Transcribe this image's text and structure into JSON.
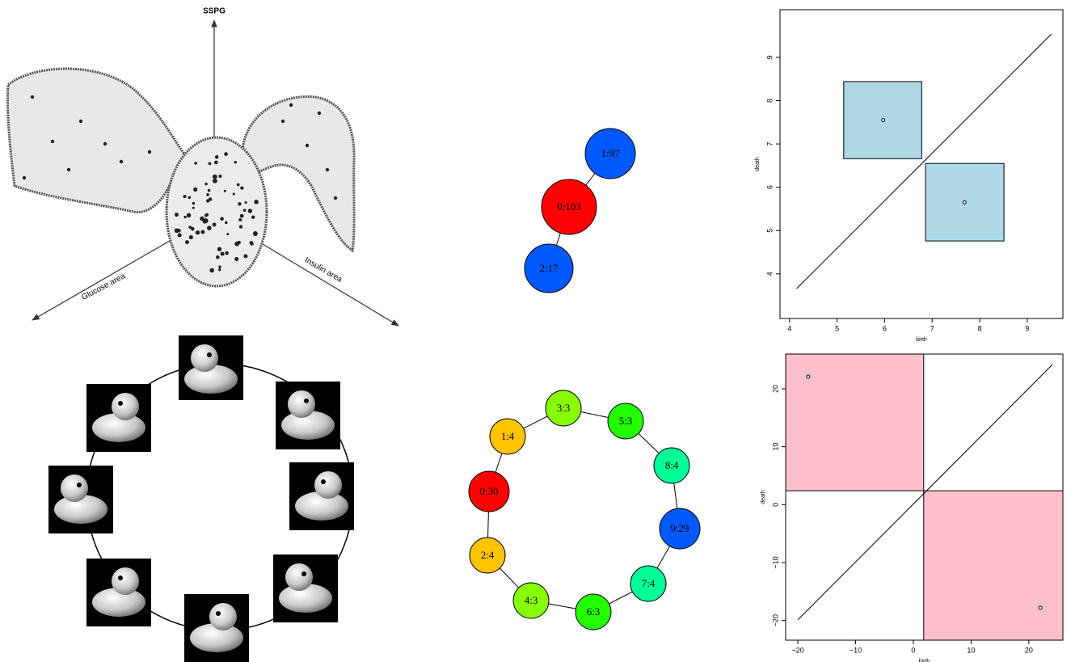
{
  "sketch": {
    "labels": [
      "SSPG",
      "Glucose area",
      "Insulin area"
    ]
  },
  "graph_top": {
    "nodes": [
      {
        "label": "1:97",
        "color": "#0059ff"
      },
      {
        "label": "0:103",
        "color": "#ff0000"
      },
      {
        "label": "2:17",
        "color": "#0059ff"
      }
    ]
  },
  "graph_ring": {
    "nodes": [
      {
        "label": "0:30",
        "color": "#ff0000"
      },
      {
        "label": "1:4",
        "color": "#ffc400"
      },
      {
        "label": "3:3",
        "color": "#88ff00"
      },
      {
        "label": "5:3",
        "color": "#22ff00"
      },
      {
        "label": "8:4",
        "color": "#00ff99"
      },
      {
        "label": "9:29",
        "color": "#0059ff"
      },
      {
        "label": "7:4",
        "color": "#00ff99"
      },
      {
        "label": "6:3",
        "color": "#22ff00"
      },
      {
        "label": "4:3",
        "color": "#88ff00"
      },
      {
        "label": "2:4",
        "color": "#ffc400"
      }
    ]
  },
  "chart_data": [
    {
      "type": "scatter",
      "xlabel": "birth",
      "ylabel": "death",
      "x": [
        5.97,
        7.68
      ],
      "values": [
        7.55,
        5.65
      ],
      "xlim": [
        3.8,
        9.75
      ],
      "ylim": [
        2.97,
        10.1
      ],
      "xticks": [
        4,
        5,
        6,
        7,
        8,
        9
      ],
      "yticks": [
        4,
        5,
        6,
        7,
        8,
        9
      ],
      "diagonal": {
        "x": [
          4.15,
          9.51
        ],
        "y": [
          3.66,
          9.54
        ]
      },
      "boxes": [
        {
          "x": [
            5.14,
            6.78
          ],
          "y": [
            6.66,
            8.44
          ]
        },
        {
          "x": [
            6.86,
            8.51
          ],
          "y": [
            4.76,
            6.55
          ]
        }
      ],
      "box_color": "#add8e6"
    },
    {
      "type": "scatter",
      "xlabel": "birth",
      "ylabel": "death",
      "x": [
        -18.2,
        22.0
      ],
      "values": [
        22.1,
        -17.8
      ],
      "xlim": [
        -22.1,
        25.9
      ],
      "ylim": [
        -23.4,
        26.0
      ],
      "xticks": [
        {
          "value": -20,
          "label": "−20"
        },
        {
          "value": -10,
          "label": "−10"
        },
        0,
        10,
        20
      ],
      "yticks": [
        {
          "value": -20,
          "label": "−20"
        },
        {
          "value": -10,
          "label": "−10"
        },
        0,
        10,
        20
      ],
      "diagonal": {
        "x": [
          -20,
          24.1
        ],
        "y": [
          -19.9,
          24.2
        ]
      },
      "split": [
        1.8,
        2.4
      ],
      "region_color": "#ffc0cb"
    }
  ]
}
